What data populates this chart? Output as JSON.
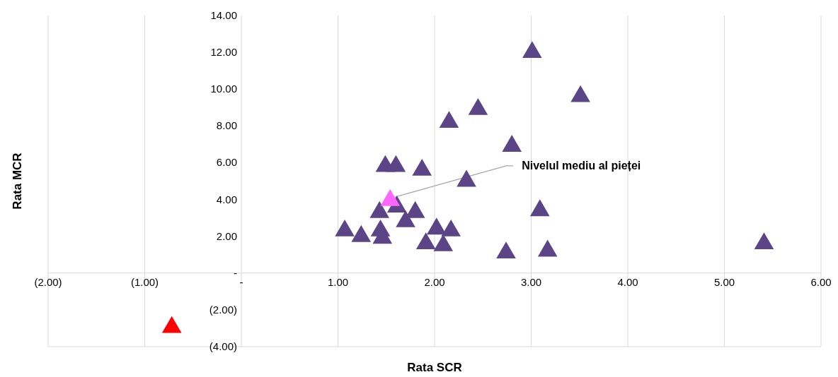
{
  "chart_data": {
    "type": "scatter",
    "xlabel": "Rata SCR",
    "ylabel": "Rata MCR",
    "marker": "triangle",
    "grid": "x",
    "xlim": [
      -2,
      6
    ],
    "xticks": [
      {
        "value": -2,
        "label": "(2.00)"
      },
      {
        "value": -1,
        "label": "(1.00)"
      },
      {
        "value": 0,
        "label": "-"
      },
      {
        "value": 1,
        "label": "1.00"
      },
      {
        "value": 2,
        "label": "2.00"
      },
      {
        "value": 3,
        "label": "3.00"
      },
      {
        "value": 4,
        "label": "4.00"
      },
      {
        "value": 5,
        "label": "5.00"
      },
      {
        "value": 6,
        "label": "6.00"
      }
    ],
    "ylim": [
      -4,
      14
    ],
    "yticks": [
      {
        "value": -4,
        "label": "(4.00)"
      },
      {
        "value": -2,
        "label": "(2.00)"
      },
      {
        "value": 0,
        "label": "-"
      },
      {
        "value": 2,
        "label": "2.00"
      },
      {
        "value": 4,
        "label": "4.00"
      },
      {
        "value": 6,
        "label": "6.00"
      },
      {
        "value": 8,
        "label": "8.00"
      },
      {
        "value": 10,
        "label": "10.00"
      },
      {
        "value": 12,
        "label": "12.00"
      },
      {
        "value": 14,
        "label": "14.00"
      }
    ],
    "series": [
      {
        "color": "#5b4586",
        "x": [
          3.01,
          3.51,
          2.45,
          2.15,
          2.8,
          1.49,
          1.6,
          1.87,
          2.33,
          1.61,
          1.43,
          1.8,
          3.09,
          1.7,
          1.07,
          2.02,
          2.17,
          1.24,
          1.44,
          1.46,
          1.91,
          2.09,
          2.74,
          3.17,
          5.41
        ],
        "values": [
          12.0,
          9.6,
          8.9,
          8.2,
          6.9,
          5.8,
          5.8,
          5.6,
          5.0,
          3.6,
          3.3,
          3.3,
          3.4,
          2.8,
          2.3,
          2.4,
          2.3,
          2.0,
          2.3,
          1.9,
          1.6,
          1.5,
          1.1,
          1.2,
          1.6
        ]
      },
      {
        "color": "#ff66ff",
        "x": [
          1.54
        ],
        "values": [
          3.95
        ]
      },
      {
        "color": "#ff0000",
        "x": [
          -0.72
        ],
        "values": [
          -2.95
        ]
      }
    ],
    "annotations": [
      {
        "text": "Nivelul mediu al pieței",
        "x": 1.54,
        "y": 3.95
      }
    ]
  }
}
